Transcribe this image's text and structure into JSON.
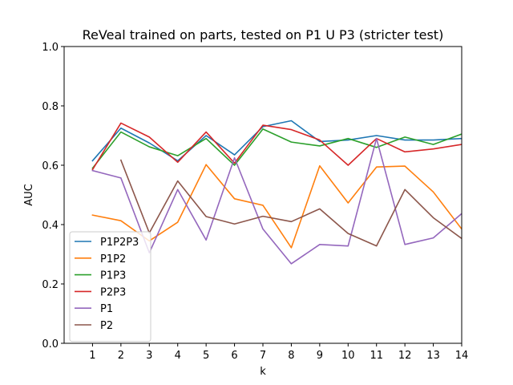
{
  "chart_data": {
    "type": "line",
    "title": "ReVeal trained on parts, tested on P1 U P3 (stricter test)",
    "xlabel": "k",
    "ylabel": "AUC",
    "xlim": [
      0,
      14
    ],
    "ylim": [
      0.0,
      1.0
    ],
    "xticks": [
      1,
      2,
      3,
      4,
      5,
      6,
      7,
      8,
      9,
      10,
      11,
      12,
      13,
      14
    ],
    "yticks": [
      "0.0",
      "0.2",
      "0.4",
      "0.6",
      "0.8",
      "1.0"
    ],
    "grid": false,
    "legend_position": "lower-left",
    "series": [
      {
        "name": "P1P2P3",
        "color": "#1f77b4",
        "x": [
          1,
          2,
          3,
          4,
          5,
          6,
          7,
          8,
          9,
          10,
          11,
          12,
          13,
          14
        ],
        "values": [
          0.615,
          0.725,
          0.675,
          0.615,
          0.7,
          0.635,
          0.73,
          0.75,
          0.68,
          0.685,
          0.7,
          0.685,
          0.685,
          0.69
        ]
      },
      {
        "name": "P1P2",
        "color": "#ff7f0e",
        "x": [
          1,
          2,
          3,
          4,
          5,
          6,
          7,
          8,
          9,
          10,
          11,
          12,
          13,
          14
        ],
        "values": [
          0.432,
          0.413,
          0.345,
          0.408,
          0.602,
          0.487,
          0.465,
          0.322,
          0.598,
          0.473,
          0.594,
          0.597,
          0.51,
          0.385
        ]
      },
      {
        "name": "P1P3",
        "color": "#2ca02c",
        "x": [
          1,
          2,
          3,
          4,
          5,
          6,
          7,
          8,
          9,
          10,
          11,
          12,
          13,
          14
        ],
        "values": [
          0.59,
          0.712,
          0.662,
          0.632,
          0.69,
          0.6,
          0.722,
          0.678,
          0.665,
          0.69,
          0.66,
          0.695,
          0.67,
          0.705
        ]
      },
      {
        "name": "P2P3",
        "color": "#d62728",
        "x": [
          1,
          2,
          3,
          4,
          5,
          6,
          7,
          8,
          9,
          10,
          11,
          12,
          13,
          14
        ],
        "values": [
          0.585,
          0.742,
          0.695,
          0.61,
          0.712,
          0.607,
          0.735,
          0.72,
          0.685,
          0.6,
          0.69,
          0.645,
          0.655,
          0.67
        ]
      },
      {
        "name": "P1",
        "color": "#9467bd",
        "x": [
          1,
          2,
          3,
          4,
          5,
          6,
          7,
          8,
          9,
          10,
          11,
          12,
          13,
          14
        ],
        "values": [
          0.582,
          0.557,
          0.305,
          0.518,
          0.348,
          0.625,
          0.385,
          0.268,
          0.333,
          0.328,
          0.69,
          0.333,
          0.355,
          0.437
        ]
      },
      {
        "name": "P2",
        "color": "#8c564b",
        "x": [
          2,
          3,
          4,
          5,
          6,
          7,
          8,
          9,
          10,
          11,
          12,
          13,
          14
        ],
        "values": [
          0.617,
          0.372,
          0.547,
          0.427,
          0.402,
          0.428,
          0.41,
          0.453,
          0.37,
          0.328,
          0.518,
          0.423,
          0.353
        ]
      }
    ]
  }
}
